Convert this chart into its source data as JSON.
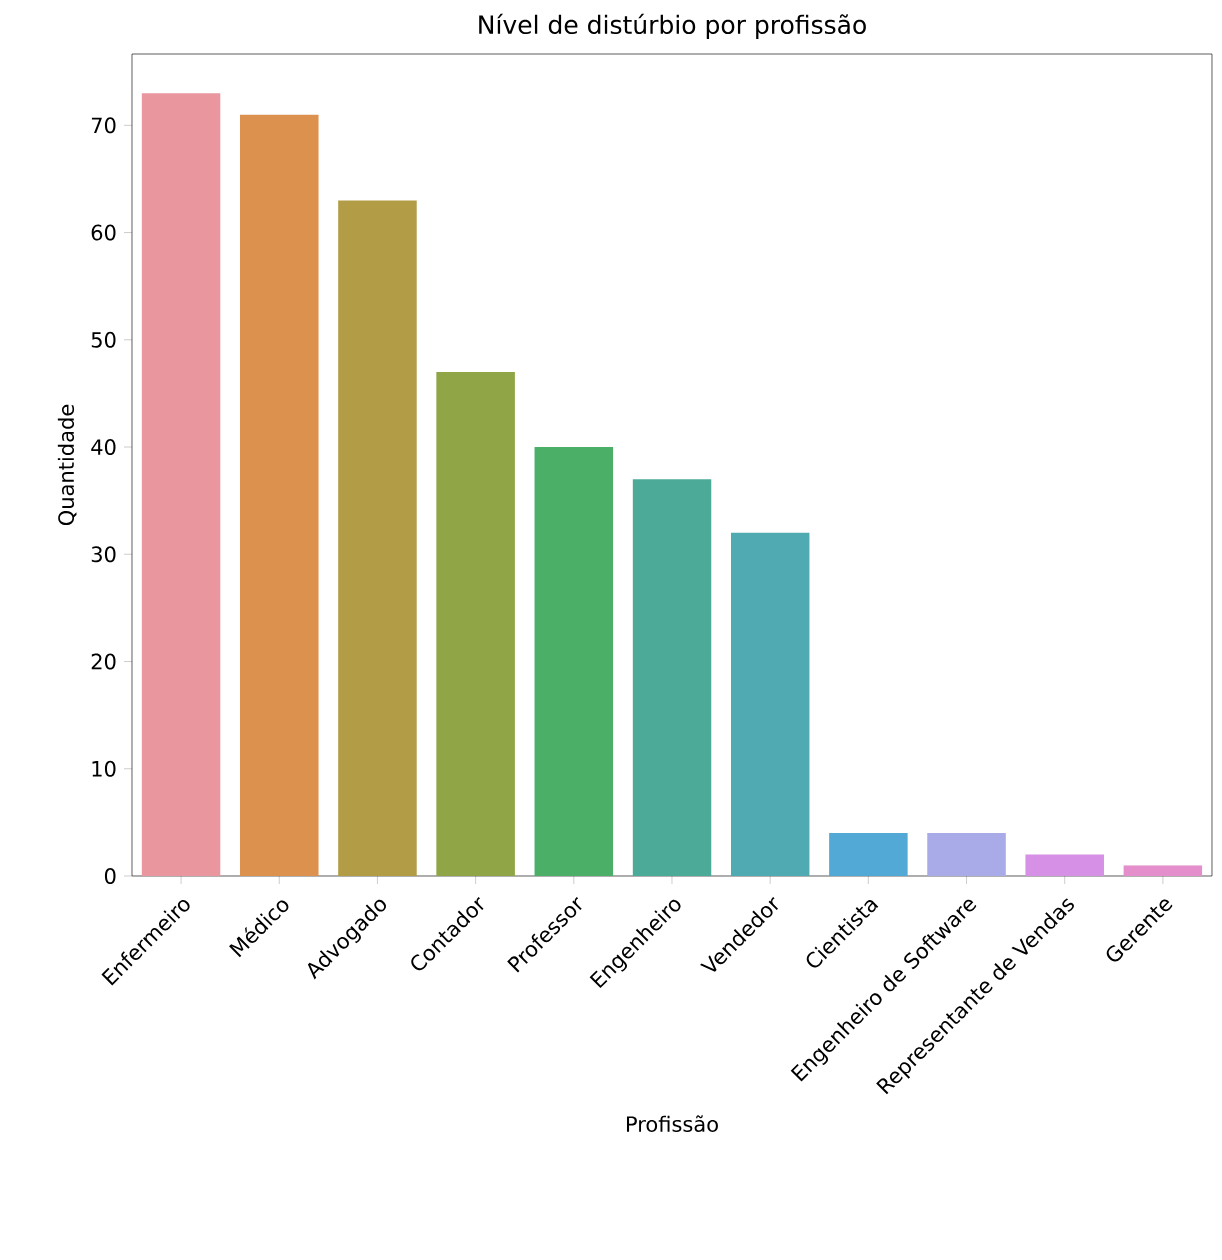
{
  "chart_data": {
    "type": "bar",
    "title": "Nível de distúrbio por profissão",
    "xlabel": "Profissão",
    "ylabel": "Quantidade",
    "categories": [
      "Enfermeiro",
      "Médico",
      "Advogado",
      "Contador",
      "Professor",
      "Engenheiro",
      "Vendedor",
      "Cientista",
      "Engenheiro de Software",
      "Representante de Vendas",
      "Gerente"
    ],
    "values": [
      73,
      71,
      63,
      47,
      40,
      37,
      32,
      4,
      4,
      2,
      1
    ],
    "colors": [
      "#e9969f",
      "#dc914f",
      "#b29d46",
      "#8fa546",
      "#4baf68",
      "#4bab98",
      "#4fabb1",
      "#53a9d5",
      "#a9aae8",
      "#d691e6",
      "#e48fcb"
    ],
    "ylim": [
      0,
      76.65
    ],
    "yticks": [
      0,
      10,
      20,
      30,
      40,
      50,
      60,
      70
    ],
    "grid": false
  }
}
